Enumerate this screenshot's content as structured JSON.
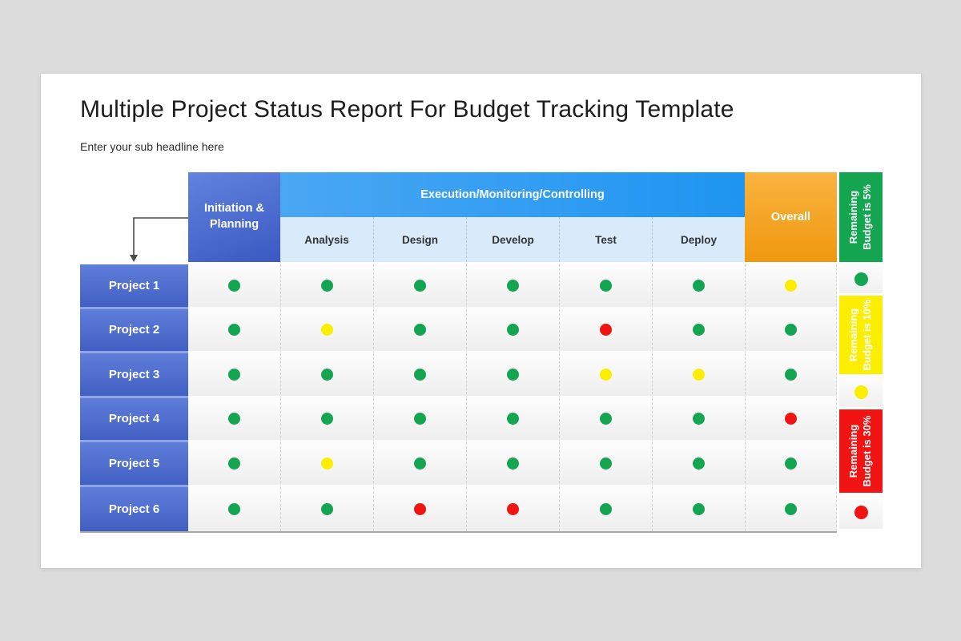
{
  "slide": {
    "title": "Multiple Project Status Report For Budget Tracking Template",
    "subtitle": "Enter your sub headline here"
  },
  "table": {
    "header": {
      "initiation": "Initiation & Planning",
      "execution": "Execution/Monitoring/Controlling",
      "overall": "Overall"
    },
    "execution_subcolumns": [
      "Analysis",
      "Design",
      "Develop",
      "Test",
      "Deploy"
    ],
    "column_order": [
      "Initiation & Planning",
      "Analysis",
      "Design",
      "Develop",
      "Test",
      "Deploy",
      "Overall"
    ],
    "rows": [
      {
        "label": "Project 1",
        "statuses": [
          "green",
          "green",
          "green",
          "green",
          "green",
          "green",
          "yellow"
        ]
      },
      {
        "label": "Project 2",
        "statuses": [
          "green",
          "yellow",
          "green",
          "green",
          "red",
          "green",
          "green"
        ]
      },
      {
        "label": "Project 3",
        "statuses": [
          "green",
          "green",
          "green",
          "green",
          "yellow",
          "yellow",
          "green"
        ]
      },
      {
        "label": "Project 4",
        "statuses": [
          "green",
          "green",
          "green",
          "green",
          "green",
          "green",
          "red"
        ]
      },
      {
        "label": "Project 5",
        "statuses": [
          "green",
          "yellow",
          "green",
          "green",
          "green",
          "green",
          "green"
        ]
      },
      {
        "label": "Project 6",
        "statuses": [
          "green",
          "green",
          "red",
          "red",
          "green",
          "green",
          "green"
        ]
      }
    ]
  },
  "legend": [
    {
      "label": "Remaining Budget is 5%",
      "status": "green"
    },
    {
      "label": "Remaining Budget is 10%",
      "status": "yellow"
    },
    {
      "label": "Remaining Budget is 30%",
      "status": "red"
    }
  ],
  "colors": {
    "green": "#14a551",
    "yellow": "#fbee00",
    "red": "#f21313",
    "execution_blue": "#2b9cf2",
    "initiation_blue": "#4766cb",
    "overall_orange": "#f5a623",
    "row_header_blue": "#4e6ecf",
    "subheader_bg": "#d9ebfb"
  }
}
